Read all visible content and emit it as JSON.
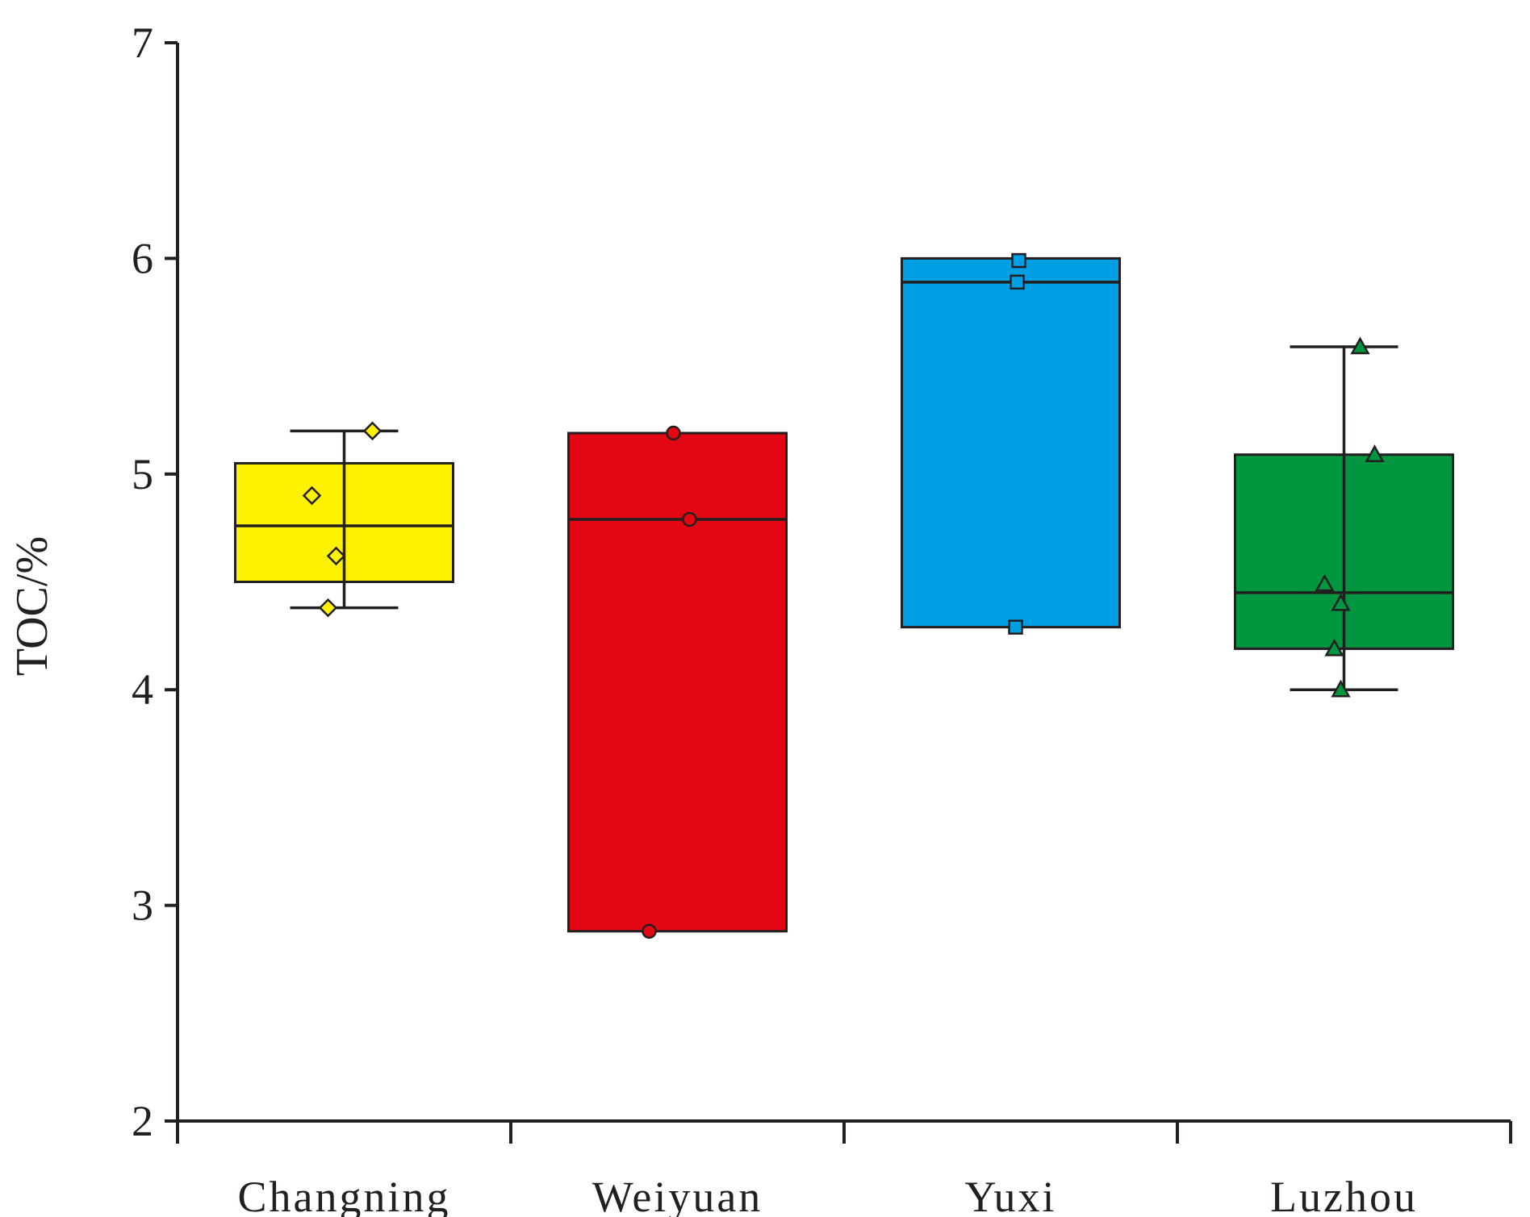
{
  "chart_data": {
    "type": "box",
    "ylabel": "TOC/%",
    "xlabel": "",
    "ylim": [
      2,
      7
    ],
    "yticks": [
      2,
      3,
      4,
      5,
      6,
      7
    ],
    "categories": [
      "Changning",
      "Weiyuan",
      "Yuxi",
      "Luzhou"
    ],
    "series": [
      {
        "name": "Changning",
        "color": "#fff200",
        "marker": "diamond",
        "q1": 4.5,
        "median": 4.76,
        "q3": 5.05,
        "whisker_low": 4.38,
        "whisker_high": 5.2,
        "points": [
          5.2,
          4.9,
          4.62,
          4.38
        ]
      },
      {
        "name": "Weiyuan",
        "color": "#e30613",
        "marker": "circle",
        "q1": 2.88,
        "median": 4.79,
        "q3": 5.19,
        "whisker_low": null,
        "whisker_high": null,
        "points": [
          5.19,
          4.79,
          2.88
        ]
      },
      {
        "name": "Yuxi",
        "color": "#009fe3",
        "marker": "square",
        "q1": 4.29,
        "median": 5.89,
        "q3": 6.0,
        "whisker_low": null,
        "whisker_high": null,
        "points": [
          5.99,
          5.89,
          4.29
        ]
      },
      {
        "name": "Luzhou",
        "color": "#009640",
        "marker": "triangle",
        "q1": 4.19,
        "median": 4.45,
        "q3": 5.09,
        "whisker_low": 4.0,
        "whisker_high": 5.59,
        "points": [
          5.59,
          5.09,
          4.49,
          4.4,
          4.19,
          4.0
        ]
      }
    ]
  }
}
